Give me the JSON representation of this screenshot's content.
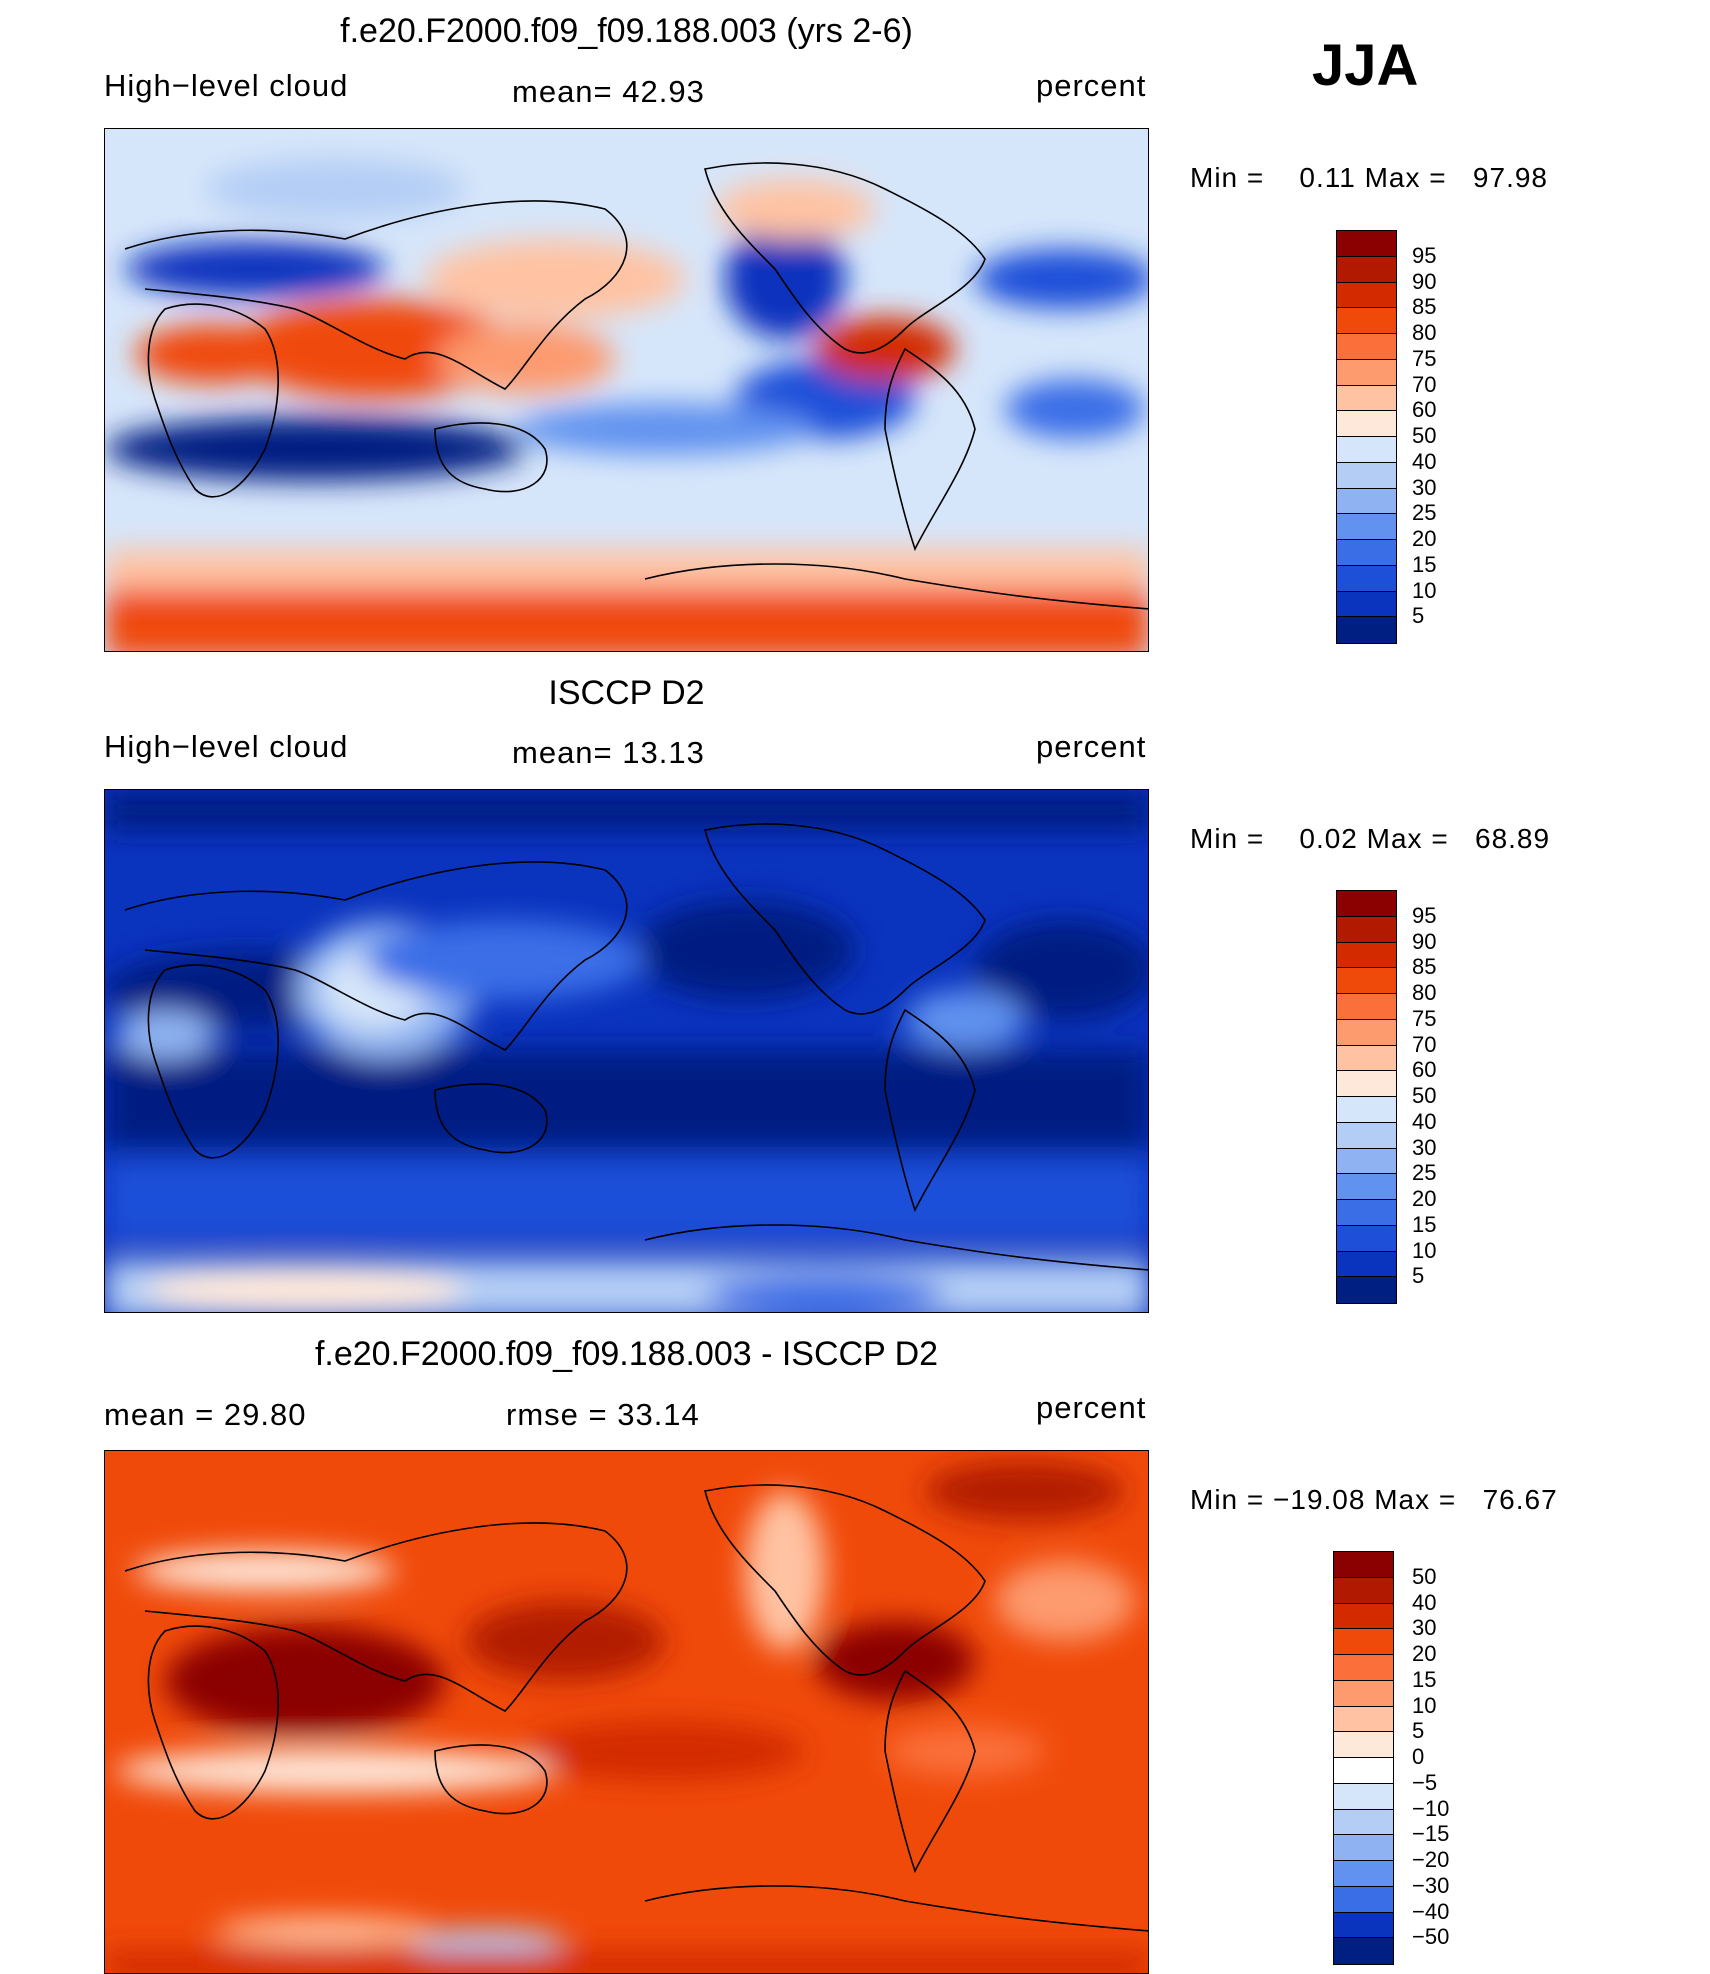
{
  "season": "JJA",
  "panels": [
    {
      "title": "f.e20.F2000.f09_f09.188.003 (yrs 2-6)",
      "left_text": "High−level cloud",
      "center_text": "mean=   42.93",
      "right_text": "percent",
      "minmax": "Min =    0.11 Max =   97.98",
      "scheme": "abs"
    },
    {
      "title": "ISCCP D2",
      "left_text": "High−level cloud",
      "center_text": "mean=   13.13",
      "right_text": "percent",
      "minmax": "Min =    0.02 Max =   68.89",
      "scheme": "abs"
    },
    {
      "title": "f.e20.F2000.f09_f09.188.003 - ISCCP D2",
      "left_text": "mean  =   29.80",
      "center_text": "rmse  =   33.14",
      "right_text": "percent",
      "minmax": "Min = −19.08 Max =   76.67",
      "scheme": "diff"
    }
  ],
  "colorbars": {
    "abs": {
      "labels": [
        "95",
        "90",
        "85",
        "80",
        "75",
        "70",
        "60",
        "50",
        "40",
        "30",
        "25",
        "20",
        "15",
        "10",
        "5"
      ],
      "colors": [
        "#8b0000",
        "#b21a00",
        "#d32a00",
        "#f04a0a",
        "#fa6f3a",
        "#fd9a6e",
        "#ffc3a3",
        "#fee8da",
        "#d6e6fa",
        "#b3cdf5",
        "#8fb3f2",
        "#6192ef",
        "#3a6ee7",
        "#1d4fd9",
        "#0a33be",
        "#001f82"
      ]
    },
    "diff": {
      "labels": [
        "50",
        "40",
        "30",
        "20",
        "15",
        "10",
        "5",
        "0",
        "−5",
        "−10",
        "−15",
        "−20",
        "−30",
        "−40",
        "−50"
      ],
      "colors": [
        "#8b0000",
        "#b21a00",
        "#d32a00",
        "#f04a0a",
        "#fa6f3a",
        "#fd9a6e",
        "#ffc3a3",
        "#fee8da",
        "#ffffff",
        "#d6e6fa",
        "#b3cdf5",
        "#8fb3f2",
        "#6192ef",
        "#3a6ee7",
        "#0a33be",
        "#001f82"
      ]
    }
  }
}
